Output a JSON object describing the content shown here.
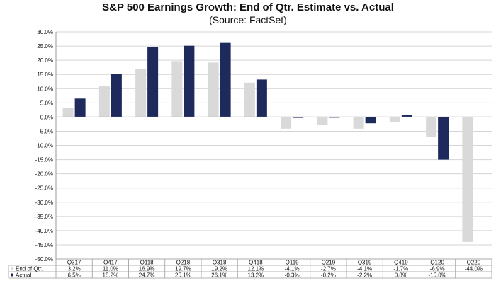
{
  "chart_data": {
    "type": "bar",
    "title": "S&P 500 Earnings Growth: End of Qtr. Estimate vs. Actual",
    "subtitle": "(Source: FactSet)",
    "categories": [
      "Q317",
      "Q417",
      "Q118",
      "Q218",
      "Q318",
      "Q418",
      "Q119",
      "Q219",
      "Q319",
      "Q419",
      "Q120",
      "Q220"
    ],
    "series": [
      {
        "name": "End of Qtr.",
        "color": "#d9d9d9",
        "values": [
          3.2,
          11.0,
          16.9,
          19.7,
          19.2,
          12.1,
          -4.1,
          -2.7,
          -4.1,
          -1.7,
          -6.9,
          -44.0
        ],
        "labels": [
          "3.2%",
          "11.0%",
          "16.9%",
          "19.7%",
          "19.2%",
          "12.1%",
          "-4.1%",
          "-2.7%",
          "-4.1%",
          "-1.7%",
          "-6.9%",
          "-44.0%"
        ]
      },
      {
        "name": "Actual",
        "color": "#1f2a5c",
        "values": [
          6.5,
          15.2,
          24.7,
          25.1,
          26.1,
          13.2,
          -0.3,
          -0.2,
          -2.2,
          0.8,
          -15.0,
          null
        ],
        "labels": [
          "6.5%",
          "15.2%",
          "24.7%",
          "25.1%",
          "26.1%",
          "13.2%",
          "-0.3%",
          "-0.2%",
          "-2.2%",
          "0.8%",
          "-15.0%",
          ""
        ]
      }
    ],
    "ylim": [
      -50,
      30
    ],
    "yticks": [
      30,
      25,
      20,
      15,
      10,
      5,
      0,
      -5,
      -10,
      -15,
      -20,
      -25,
      -30,
      -35,
      -40,
      -45,
      -50
    ],
    "ytick_labels": [
      "30.0%",
      "25.0%",
      "20.0%",
      "15.0%",
      "10.0%",
      "5.0%",
      "0.0%",
      "-5.0%",
      "-10.0%",
      "-15.0%",
      "-20.0%",
      "-25.0%",
      "-30.0%",
      "-35.0%",
      "-40.0%",
      "-45.0%",
      "-50.0%"
    ],
    "grid": true,
    "legend": "data-table"
  }
}
